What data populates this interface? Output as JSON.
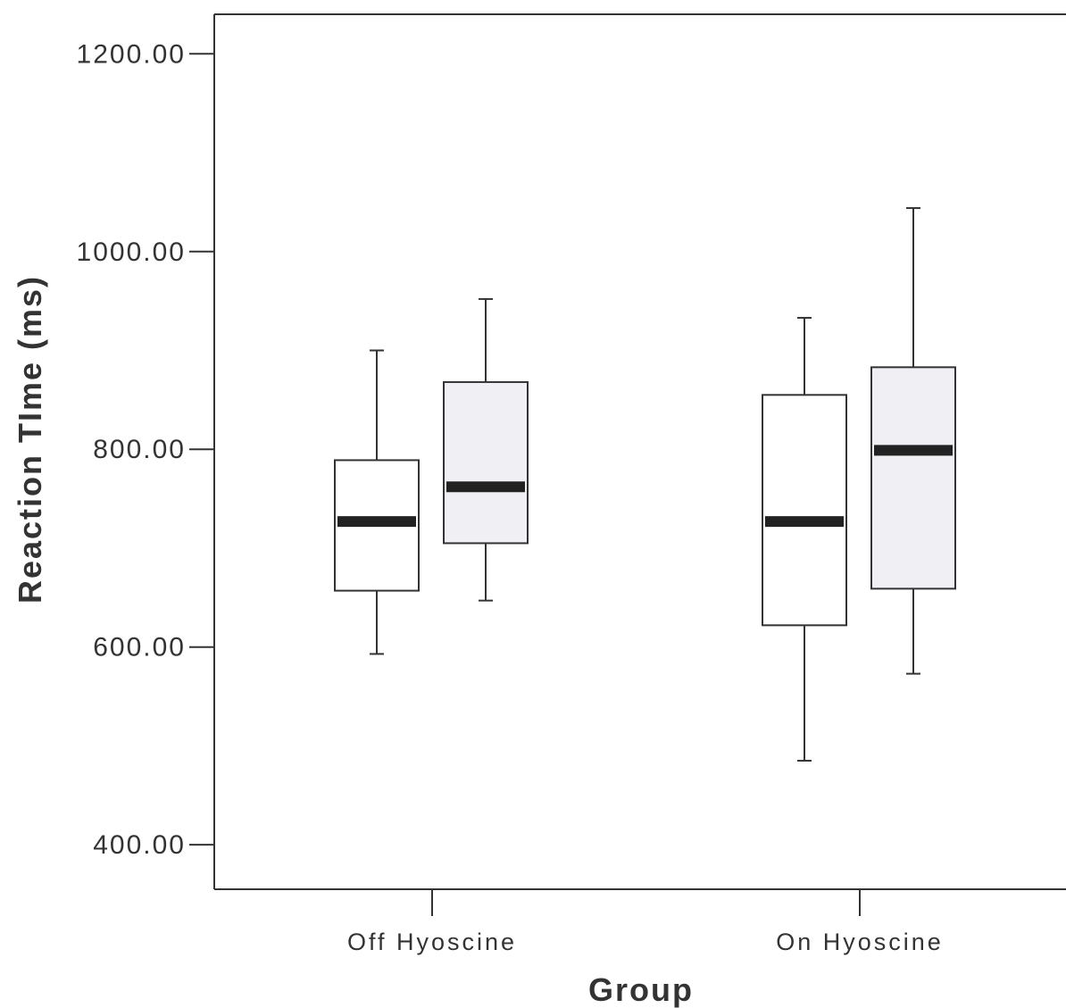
{
  "chart_data": {
    "type": "box",
    "xlabel": "Group",
    "ylabel": "Reaction TIme (ms)",
    "ylim": [
      355,
      1240
    ],
    "yticks": [
      400,
      600,
      800,
      1000,
      1200
    ],
    "ytick_labels": [
      "400.00",
      "600.00",
      "800.00",
      "1000.00",
      "1200.00"
    ],
    "categories": [
      "Off Hyoscine",
      "On Hyoscine"
    ],
    "series": [
      {
        "fill": "#ffffff",
        "boxes": [
          {
            "whisker_low": 593,
            "q1": 657,
            "median": 727,
            "q3": 789,
            "whisker_high": 900
          },
          {
            "whisker_low": 485,
            "q1": 622,
            "median": 727,
            "q3": 855,
            "whisker_high": 933
          }
        ]
      },
      {
        "fill": "#f0f0f4",
        "boxes": [
          {
            "whisker_low": 647,
            "q1": 705,
            "median": 762,
            "q3": 868,
            "whisker_high": 952
          },
          {
            "whisker_low": 573,
            "q1": 659,
            "median": 799,
            "q3": 883,
            "whisker_high": 1044
          }
        ]
      }
    ],
    "colors": {
      "line": "#333333",
      "median": "#222222",
      "background": "#ffffff"
    }
  }
}
